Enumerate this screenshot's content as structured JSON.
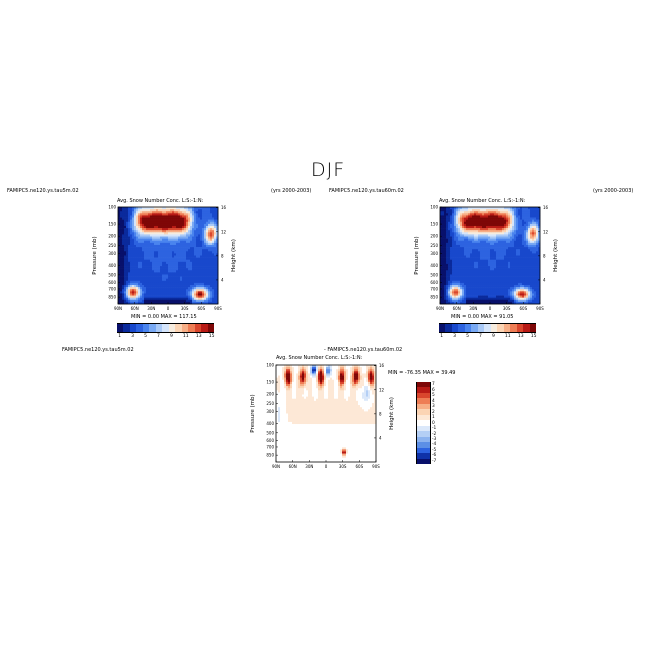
{
  "figure": {
    "title": "DJF"
  },
  "chart_data": [
    {
      "type": "heatmap",
      "case_label": "FAMIPC5.ne120.ys.tau5m.02",
      "years_label": "(yrs 2000-2003)",
      "title": "Avg. Snow Number Conc. L:S:-1:N:",
      "xlabel": "",
      "ylabel": "Pressure (mb)",
      "y2label": "Height (km)",
      "x_ticks": [
        "90N",
        "60N",
        "30N",
        "0",
        "30S",
        "60S",
        "90S"
      ],
      "y_ticks": [
        "100",
        "150",
        "200",
        "250",
        "300",
        "400",
        "500",
        "600",
        "700",
        "850"
      ],
      "y2_ticks": [
        "16",
        "12",
        "8",
        "4"
      ],
      "xlim": [
        90,
        -90
      ],
      "ylim": [
        1000,
        100
      ],
      "stats": "MIN =    0.00  MAX = 117.15",
      "min": 0.0,
      "max": 117.15,
      "colorbar_ticks": [
        "1",
        "3",
        "5",
        "7",
        "9",
        "11",
        "13",
        "15"
      ],
      "colorbar_levels": [
        1,
        2,
        3,
        4,
        5,
        6,
        7,
        8,
        9,
        10,
        11,
        12,
        13,
        14,
        15
      ]
    },
    {
      "type": "heatmap",
      "case_label": "FAMIPC5.ne120.ys.tau60m.02",
      "years_label": "(yrs 2000-2003)",
      "title": "Avg. Snow Number Conc. L:S:-1:N:",
      "xlabel": "",
      "ylabel": "Pressure (mb)",
      "y2label": "Height (km)",
      "x_ticks": [
        "90N",
        "60N",
        "30N",
        "0",
        "30S",
        "60S",
        "90S"
      ],
      "y_ticks": [
        "100",
        "150",
        "200",
        "250",
        "300",
        "400",
        "500",
        "600",
        "700",
        "850"
      ],
      "y2_ticks": [
        "16",
        "12",
        "8",
        "4"
      ],
      "xlim": [
        90,
        -90
      ],
      "ylim": [
        1000,
        100
      ],
      "stats": "MIN =    0.00  MAX =  91.05",
      "min": 0.0,
      "max": 91.05,
      "colorbar_ticks": [
        "1",
        "3",
        "5",
        "7",
        "9",
        "11",
        "13",
        "15"
      ],
      "colorbar_levels": [
        1,
        2,
        3,
        4,
        5,
        6,
        7,
        8,
        9,
        10,
        11,
        12,
        13,
        14,
        15
      ]
    },
    {
      "type": "heatmap",
      "case_label": "FAMIPC5.ne120.ys.tau5m.02",
      "minus_label": "- FAMIPC5.ne120.ys.tau60m.02",
      "title": "Avg. Snow Number Conc. L:S:-1:N:",
      "xlabel": "",
      "ylabel": "Pressure (mb)",
      "y2label": "Height (km)",
      "x_ticks": [
        "90N",
        "60N",
        "30N",
        "0",
        "30S",
        "60S",
        "90S"
      ],
      "y_ticks": [
        "100",
        "150",
        "200",
        "250",
        "300",
        "400",
        "500",
        "600",
        "700",
        "850"
      ],
      "y2_ticks": [
        "16",
        "12",
        "8",
        "4"
      ],
      "xlim": [
        90,
        -90
      ],
      "ylim": [
        1000,
        100
      ],
      "stats": "MIN = -76.35  MAX =  39.49",
      "min": -76.35,
      "max": 39.49,
      "colorbar_ticks": [
        "7",
        "6",
        "5",
        "4",
        "3",
        "2",
        "1",
        "0",
        "-1",
        "-2",
        "-3",
        "-4",
        "-5",
        "-6",
        "-7"
      ],
      "colorbar_levels": [
        7,
        6,
        5,
        4,
        3,
        2,
        1,
        0,
        -1,
        -2,
        -3,
        -4,
        -5,
        -6,
        -7
      ]
    }
  ],
  "colors": {
    "seq": [
      "#08106b",
      "#0a2a9c",
      "#1848cc",
      "#2d63e0",
      "#4a84ee",
      "#79a9f3",
      "#a9c9f7",
      "#d5e5fb",
      "#f6ecdf",
      "#fbd4b4",
      "#f7ae86",
      "#ee7d55",
      "#d9462d",
      "#b81a15",
      "#7e0707"
    ],
    "div": [
      "#7e0707",
      "#b81a15",
      "#d9462d",
      "#ee7d55",
      "#f7ae86",
      "#fbd4b4",
      "#fde8d6",
      "#ffffff",
      "#dbe8fa",
      "#b4cff5",
      "#8cb3ef",
      "#5c8fe6",
      "#2d63e0",
      "#0f32a8",
      "#08106b"
    ]
  }
}
